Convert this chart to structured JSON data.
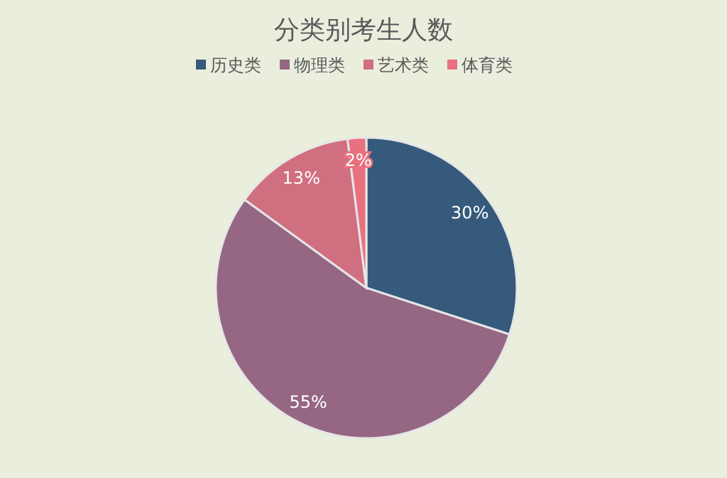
{
  "chart_data": {
    "type": "pie",
    "title": "分类别考生人数",
    "categories": [
      "历史类",
      "物理类",
      "艺术类",
      "体育类"
    ],
    "values": [
      30,
      55,
      13,
      2
    ],
    "colors": [
      "#355a7c",
      "#956783",
      "#d06f80",
      "#e8707f"
    ],
    "value_labels": [
      "30%",
      "55%",
      "13%",
      "2%"
    ],
    "legend": "top"
  }
}
